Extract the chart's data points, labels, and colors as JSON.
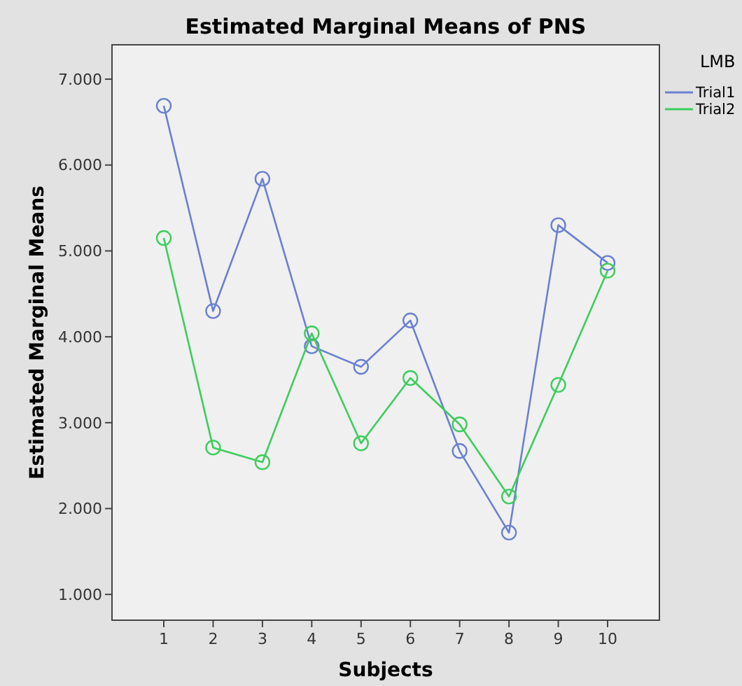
{
  "chart_data": {
    "type": "line",
    "title": "Estimated Marginal Means of PNS",
    "xlabel": "Subjects",
    "ylabel": "Estimated Marginal Means",
    "legend_title": "LMB",
    "categories": [
      "1",
      "2",
      "3",
      "4",
      "5",
      "6",
      "7",
      "8",
      "9",
      "10"
    ],
    "series": [
      {
        "name": "Trial1",
        "color": "#6a80d0",
        "values": [
          6.69,
          4.3,
          5.84,
          3.89,
          3.65,
          4.19,
          2.67,
          1.72,
          5.3,
          4.86
        ]
      },
      {
        "name": "Trial2",
        "color": "#3ccd5c",
        "values": [
          5.15,
          2.71,
          2.54,
          4.04,
          2.76,
          3.52,
          2.98,
          2.14,
          3.44,
          4.77
        ]
      }
    ],
    "ylim": [
      0.7,
      7.4
    ],
    "yticks": [
      {
        "value": 1,
        "label": "1.000"
      },
      {
        "value": 2,
        "label": "2.000"
      },
      {
        "value": 3,
        "label": "3.000"
      },
      {
        "value": 4,
        "label": "4.000"
      },
      {
        "value": 5,
        "label": "5.000"
      },
      {
        "value": 6,
        "label": "6.000"
      },
      {
        "value": 7,
        "label": "7.000"
      }
    ],
    "marker": "circle",
    "line_style": "solid",
    "legend": "right",
    "grid": false
  }
}
